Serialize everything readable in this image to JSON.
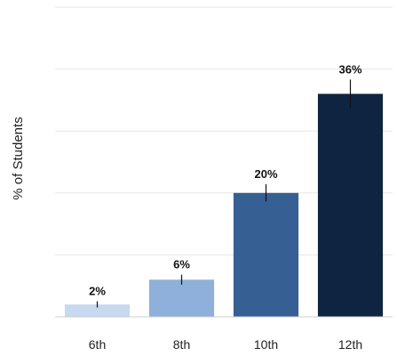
{
  "chart_data": {
    "type": "bar",
    "ylabel": "% of Students",
    "categories": [
      "6th",
      "8th",
      "10th",
      "12th"
    ],
    "values": [
      2,
      6,
      20,
      36
    ],
    "value_labels": [
      "2%",
      "6%",
      "20%",
      "36%"
    ],
    "error_half_width": [
      0.5,
      0.8,
      1.4,
      2.3
    ],
    "colors": [
      "#c6d9ef",
      "#8fb0da",
      "#365f94",
      "#0f2440"
    ],
    "ylim": [
      0,
      50
    ],
    "grid": true,
    "legend": "none"
  }
}
